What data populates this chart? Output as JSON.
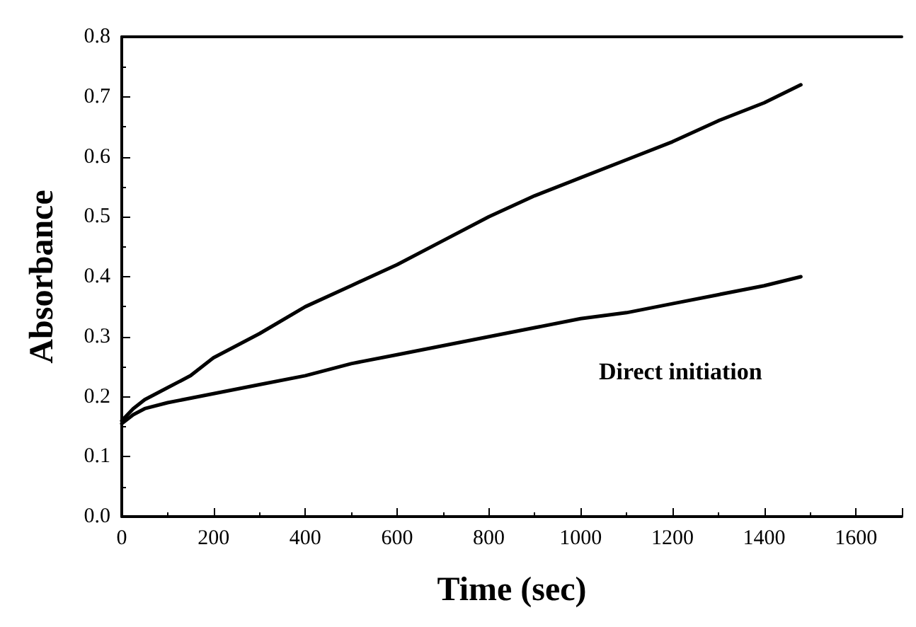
{
  "chart_data": {
    "type": "line",
    "xlabel": "Time (sec)",
    "ylabel": "Absorbance",
    "xlim": [
      0,
      1700
    ],
    "xticks": [
      0,
      200,
      400,
      600,
      800,
      1000,
      1200,
      1400,
      1600
    ],
    "ylim": [
      0,
      0.8
    ],
    "yticks": [
      {
        "value": 0,
        "label": "0.0"
      },
      {
        "value": 0.1,
        "label": "0.1"
      },
      {
        "value": 0.2,
        "label": "0.2"
      },
      {
        "value": 0.3,
        "label": "0.3"
      },
      {
        "value": 0.4,
        "label": "0.4"
      },
      {
        "value": 0.5,
        "label": "0.5"
      },
      {
        "value": 0.6,
        "label": "0.6"
      },
      {
        "value": 0.7,
        "label": "0.7"
      },
      {
        "value": 0.8,
        "label": "0.8"
      }
    ],
    "series": [
      {
        "color": "#000000",
        "x": [
          0,
          25,
          50,
          100,
          150,
          200,
          300,
          400,
          500,
          600,
          700,
          800,
          900,
          1000,
          1100,
          1200,
          1300,
          1400,
          1480
        ],
        "values": [
          0.16,
          0.18,
          0.195,
          0.215,
          0.235,
          0.265,
          0.305,
          0.35,
          0.385,
          0.42,
          0.46,
          0.5,
          0.535,
          0.565,
          0.595,
          0.625,
          0.66,
          0.69,
          0.72
        ]
      },
      {
        "color": "#000000",
        "x": [
          0,
          25,
          50,
          100,
          200,
          300,
          400,
          500,
          600,
          700,
          800,
          900,
          1000,
          1100,
          1200,
          1300,
          1400,
          1480
        ],
        "values": [
          0.155,
          0.17,
          0.18,
          0.19,
          0.205,
          0.22,
          0.235,
          0.255,
          0.27,
          0.285,
          0.3,
          0.315,
          0.33,
          0.34,
          0.355,
          0.37,
          0.385,
          0.4
        ]
      }
    ],
    "annotations": [
      "Direct initiation"
    ],
    "grid": false,
    "marker": "none",
    "line_style": "solid"
  }
}
